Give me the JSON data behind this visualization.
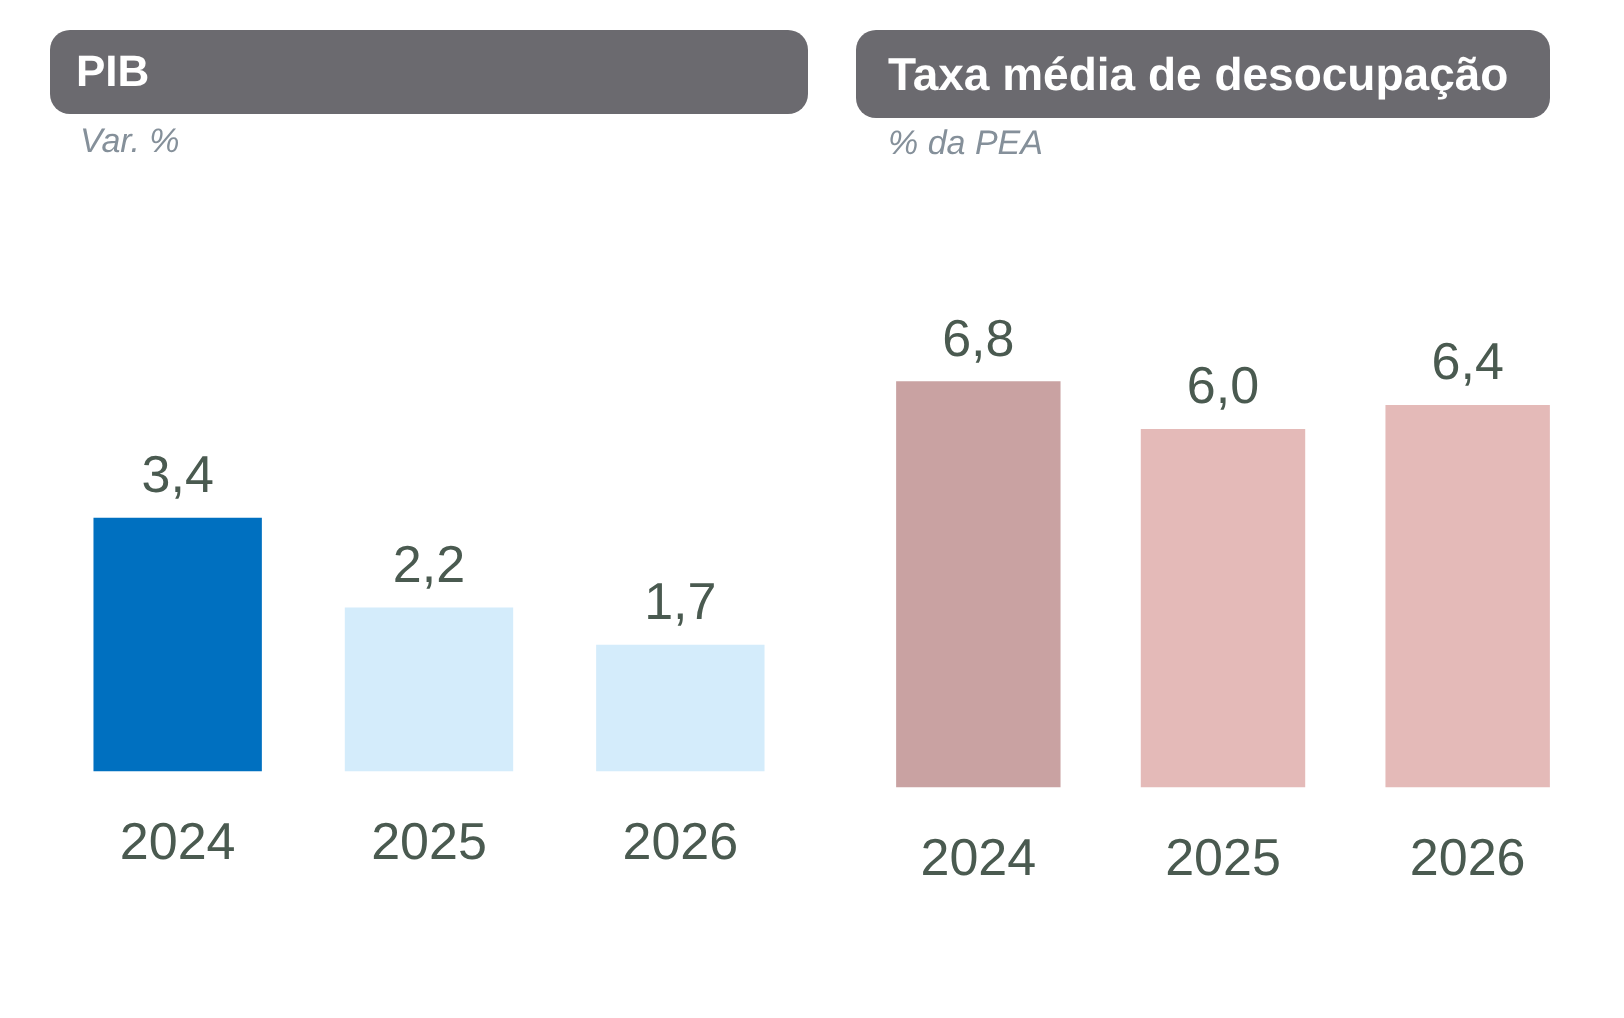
{
  "chart_data": [
    {
      "type": "bar",
      "title": "PIB",
      "subtitle": "Var. %",
      "categories": [
        "2024",
        "2025",
        "2026"
      ],
      "values": [
        3.4,
        2.2,
        1.7
      ],
      "colors": [
        "#0070c0",
        "#d4ecfb",
        "#d4ecfb"
      ],
      "value_labels": [
        "3,4",
        "2,2",
        "1,7"
      ],
      "tick_labels": "x"
    },
    {
      "type": "bar",
      "title": "Taxa média de desocupação",
      "subtitle": "% da PEA",
      "categories": [
        "2024",
        "2025",
        "2026"
      ],
      "values": [
        6.8,
        6.0,
        6.4
      ],
      "colors": [
        "#c9a2a2",
        "#e4bab8",
        "#e4bab8"
      ],
      "value_labels": [
        "6,8",
        "6,0",
        "6,4"
      ],
      "tick_labels": "x"
    }
  ]
}
